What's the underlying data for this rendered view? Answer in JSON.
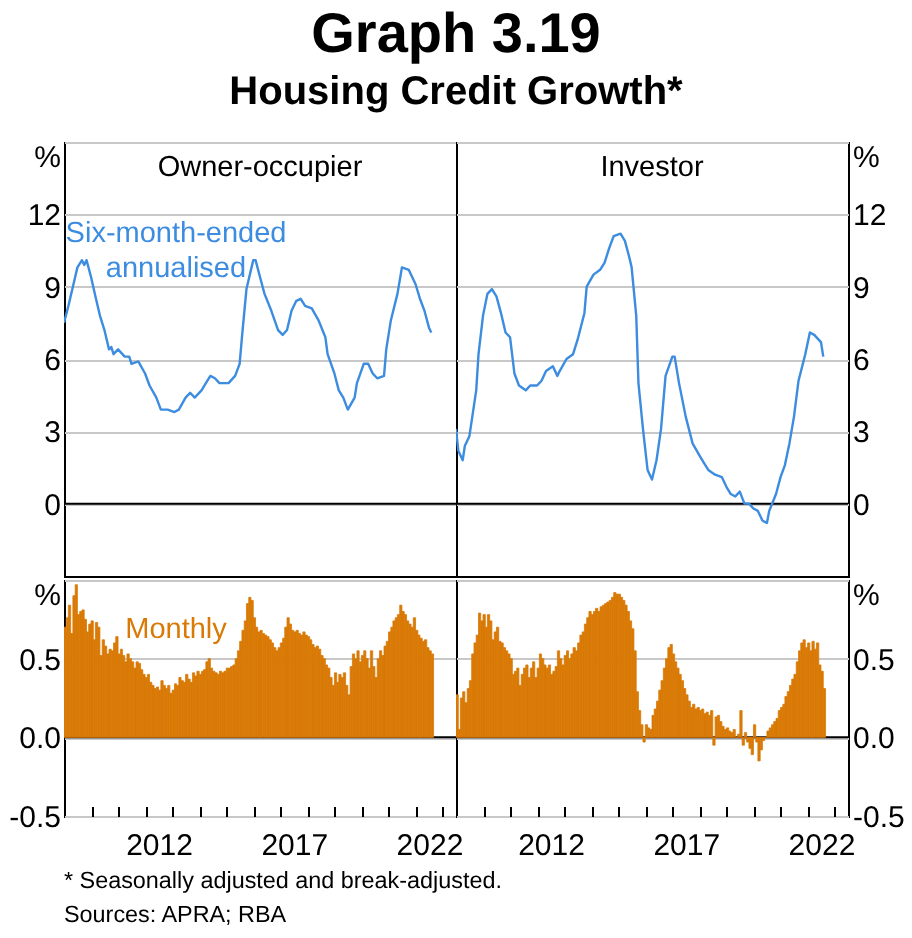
{
  "chart_data": [
    {
      "type": "line",
      "title": "Graph 3.19",
      "subtitle": "Housing Credit Growth*",
      "annotations": [
        "Owner-occupier"
      ],
      "xlim": [
        "2009-01",
        "2023-07"
      ],
      "ylim": [
        -3,
        15
      ],
      "yticks": [
        0,
        3,
        6,
        9,
        12,
        {
          "value": 15,
          "label": "%"
        }
      ],
      "grid": "y",
      "tick_labels": "y",
      "ref_lines": [
        {
          "axis": "y",
          "value": 0,
          "color": "#000000"
        }
      ],
      "series": [
        {
          "name": "Six-month-ended annualised",
          "color": "#3c8ce0",
          "x": [
            "2009-01",
            "2009-03",
            "2009-05",
            "2009-07",
            "2009-09",
            "2009-10",
            "2009-11",
            "2010-01",
            "2010-03",
            "2010-05",
            "2010-07",
            "2010-09",
            "2010-10",
            "2010-11",
            "2011-01",
            "2011-04",
            "2011-06",
            "2011-07",
            "2011-10",
            "2012-01",
            "2012-03",
            "2012-06",
            "2012-08",
            "2012-11",
            "2013-02",
            "2013-04",
            "2013-07",
            "2013-09",
            "2013-11",
            "2014-02",
            "2014-04",
            "2014-06",
            "2014-08",
            "2014-10",
            "2015-02",
            "2015-05",
            "2015-07",
            "2015-08",
            "2015-10",
            "2016-01",
            "2016-02",
            "2016-04",
            "2016-06",
            "2016-09",
            "2016-12",
            "2017-02",
            "2017-04",
            "2017-06",
            "2017-08",
            "2017-10",
            "2017-12",
            "2018-03",
            "2018-06",
            "2018-09",
            "2018-10",
            "2019-01",
            "2019-03",
            "2019-05",
            "2019-07",
            "2019-10",
            "2019-11",
            "2020-02",
            "2020-04",
            "2020-06",
            "2020-08",
            "2020-11",
            "2020-12",
            "2021-02",
            "2021-05",
            "2021-07",
            "2021-10",
            "2022-01",
            "2022-03",
            "2022-05",
            "2022-07",
            "2022-08"
          ],
          "values": [
            7.5,
            8.2,
            9.0,
            9.8,
            10.1,
            9.9,
            10.1,
            9.4,
            8.6,
            7.8,
            7.2,
            6.4,
            6.5,
            6.2,
            6.4,
            6.1,
            6.1,
            5.8,
            5.9,
            5.4,
            4.9,
            4.4,
            3.9,
            3.9,
            3.8,
            3.9,
            4.4,
            4.6,
            4.4,
            4.7,
            5.0,
            5.3,
            5.2,
            5.0,
            5.0,
            5.3,
            5.8,
            6.9,
            8.9,
            10.1,
            10.1,
            9.4,
            8.7,
            8.0,
            7.2,
            7.0,
            7.2,
            8.0,
            8.4,
            8.5,
            8.2,
            8.1,
            7.6,
            6.9,
            6.2,
            5.4,
            4.7,
            4.4,
            3.9,
            4.4,
            5.0,
            5.8,
            5.8,
            5.4,
            5.2,
            5.3,
            6.4,
            7.6,
            8.7,
            9.8,
            9.7,
            9.1,
            8.5,
            8.0,
            7.3,
            7.1
          ]
        }
      ]
    },
    {
      "type": "line",
      "annotations": [
        "Investor"
      ],
      "xlim": [
        "2009-01",
        "2023-07"
      ],
      "ylim": [
        -3,
        15
      ],
      "yticks": [
        0,
        3,
        6,
        9,
        12,
        {
          "value": 15,
          "label": "%"
        }
      ],
      "grid": "y",
      "tick_labels": "y",
      "ref_lines": [
        {
          "axis": "y",
          "value": 0,
          "color": "#000000"
        }
      ],
      "series": [
        {
          "color": "#3c8ce0",
          "x": [
            "2009-01",
            "2009-02",
            "2009-04",
            "2009-05",
            "2009-07",
            "2009-10",
            "2009-11",
            "2010-01",
            "2010-03",
            "2010-05",
            "2010-07",
            "2010-09",
            "2010-11",
            "2011-01",
            "2011-03",
            "2011-05",
            "2011-08",
            "2011-10",
            "2012-01",
            "2012-03",
            "2012-05",
            "2012-08",
            "2012-10",
            "2012-11",
            "2013-02",
            "2013-05",
            "2013-07",
            "2013-10",
            "2013-11",
            "2014-02",
            "2014-05",
            "2014-07",
            "2014-09",
            "2014-11",
            "2015-02",
            "2015-04",
            "2015-06",
            "2015-07",
            "2015-09",
            "2015-10",
            "2015-12",
            "2016-02",
            "2016-04",
            "2016-06",
            "2016-08",
            "2016-10",
            "2017-01",
            "2017-02",
            "2017-04",
            "2017-07",
            "2017-10",
            "2018-01",
            "2018-03",
            "2018-05",
            "2018-08",
            "2018-11",
            "2019-01",
            "2019-03",
            "2019-05",
            "2019-07",
            "2019-09",
            "2019-11",
            "2020-01",
            "2020-03",
            "2020-05",
            "2020-07",
            "2020-08",
            "2020-11",
            "2021-01",
            "2021-03",
            "2021-05",
            "2021-07",
            "2021-09",
            "2021-12",
            "2022-02",
            "2022-04",
            "2022-07",
            "2022-08"
          ],
          "values": [
            3.1,
            2.2,
            1.8,
            2.4,
            2.8,
            4.7,
            6.2,
            7.8,
            8.7,
            8.9,
            8.6,
            7.9,
            7.1,
            6.9,
            5.4,
            4.9,
            4.7,
            4.9,
            4.9,
            5.1,
            5.5,
            5.7,
            5.3,
            5.5,
            6.0,
            6.2,
            6.8,
            7.9,
            9.0,
            9.5,
            9.7,
            10.0,
            10.6,
            11.1,
            11.2,
            10.9,
            10.2,
            9.8,
            7.8,
            5.0,
            3.1,
            1.4,
            1.0,
            1.8,
            3.1,
            5.3,
            6.1,
            6.1,
            5.0,
            3.6,
            2.5,
            2.0,
            1.7,
            1.4,
            1.2,
            1.1,
            0.7,
            0.4,
            0.3,
            0.5,
            0.0,
            0.0,
            -0.2,
            -0.3,
            -0.7,
            -0.8,
            -0.3,
            0.4,
            1.1,
            1.6,
            2.5,
            3.6,
            5.1,
            6.2,
            7.1,
            7.0,
            6.7,
            6.1
          ]
        }
      ]
    },
    {
      "type": "bar",
      "xlim": [
        "2009-01",
        "2023-07"
      ],
      "ylim": [
        -0.5,
        1.0
      ],
      "yticks": [
        -0.5,
        {
          "value": 0,
          "label": "0.0"
        },
        0.5,
        {
          "value": 1.0,
          "label": "%"
        }
      ],
      "grid": "y",
      "xticks": [
        {
          "value": "2010",
          "label": null
        },
        {
          "value": "2011",
          "label": null
        },
        {
          "value": "2012",
          "label": null
        },
        {
          "value": "2013",
          "label": null
        },
        {
          "value": "2014",
          "label": null
        },
        {
          "value": "2015",
          "label": null
        },
        {
          "value": "2016",
          "label": null
        },
        {
          "value": "2017",
          "label": null
        },
        {
          "value": "2018",
          "label": null
        },
        {
          "value": "2019",
          "label": null
        },
        {
          "value": "2020",
          "label": null
        },
        {
          "value": "2021",
          "label": null
        },
        {
          "value": "2022",
          "label": null
        },
        {
          "value": "2023",
          "label": null
        },
        {
          "value": "2012-07",
          "label": "2012"
        },
        {
          "value": "2017-07",
          "label": "2017"
        },
        {
          "value": "2022-07",
          "label": "2022"
        }
      ],
      "ref_lines": [
        {
          "axis": "y",
          "value": 0,
          "color": "#000000"
        }
      ],
      "x": [
        "2009-01",
        "2009-02",
        "2009-03",
        "2009-04",
        "2009-05",
        "2009-06",
        "2009-07",
        "2009-08",
        "2009-09",
        "2009-10",
        "2009-11",
        "2009-12",
        "2010-01",
        "2010-02",
        "2010-03",
        "2010-04",
        "2010-05",
        "2010-06",
        "2010-07",
        "2010-08",
        "2010-09",
        "2010-10",
        "2010-11",
        "2010-12",
        "2011-01",
        "2011-02",
        "2011-03",
        "2011-04",
        "2011-05",
        "2011-06",
        "2011-07",
        "2011-08",
        "2011-09",
        "2011-10",
        "2011-11",
        "2011-12",
        "2012-01",
        "2012-02",
        "2012-03",
        "2012-04",
        "2012-05",
        "2012-06",
        "2012-07",
        "2012-08",
        "2012-09",
        "2012-10",
        "2012-11",
        "2012-12",
        "2013-01",
        "2013-02",
        "2013-03",
        "2013-04",
        "2013-05",
        "2013-06",
        "2013-07",
        "2013-08",
        "2013-09",
        "2013-10",
        "2013-11",
        "2013-12",
        "2014-01",
        "2014-02",
        "2014-03",
        "2014-04",
        "2014-05",
        "2014-06",
        "2014-07",
        "2014-08",
        "2014-09",
        "2014-10",
        "2014-11",
        "2014-12",
        "2015-01",
        "2015-02",
        "2015-03",
        "2015-04",
        "2015-05",
        "2015-06",
        "2015-07",
        "2015-08",
        "2015-09",
        "2015-10",
        "2015-11",
        "2015-12",
        "2016-01",
        "2016-02",
        "2016-03",
        "2016-04",
        "2016-05",
        "2016-06",
        "2016-07",
        "2016-08",
        "2016-09",
        "2016-10",
        "2016-11",
        "2016-12",
        "2017-01",
        "2017-02",
        "2017-03",
        "2017-04",
        "2017-05",
        "2017-06",
        "2017-07",
        "2017-08",
        "2017-09",
        "2017-10",
        "2017-11",
        "2017-12",
        "2018-01",
        "2018-02",
        "2018-03",
        "2018-04",
        "2018-05",
        "2018-06",
        "2018-07",
        "2018-08",
        "2018-09",
        "2018-10",
        "2018-11",
        "2018-12",
        "2019-01",
        "2019-02",
        "2019-03",
        "2019-04",
        "2019-05",
        "2019-06",
        "2019-07",
        "2019-08",
        "2019-09",
        "2019-10",
        "2019-11",
        "2019-12",
        "2020-01",
        "2020-02",
        "2020-03",
        "2020-04",
        "2020-05",
        "2020-06",
        "2020-07",
        "2020-08",
        "2020-09",
        "2020-10",
        "2020-11",
        "2020-12",
        "2021-01",
        "2021-02",
        "2021-03",
        "2021-04",
        "2021-05",
        "2021-06",
        "2021-07",
        "2021-08",
        "2021-09",
        "2021-10",
        "2021-11",
        "2021-12",
        "2022-01",
        "2022-02",
        "2022-03",
        "2022-04",
        "2022-05",
        "2022-06",
        "2022-07",
        "2022-08"
      ],
      "series": [
        {
          "name": "Monthly",
          "color": "#d97a06",
          "values": [
            0.7,
            0.76,
            0.84,
            0.66,
            0.9,
            0.97,
            0.78,
            0.8,
            0.81,
            0.75,
            0.67,
            0.72,
            0.74,
            0.62,
            0.73,
            0.7,
            0.52,
            0.62,
            0.58,
            0.53,
            0.56,
            0.55,
            0.6,
            0.64,
            0.53,
            0.56,
            0.52,
            0.48,
            0.53,
            0.5,
            0.48,
            0.44,
            0.48,
            0.47,
            0.43,
            0.4,
            0.38,
            0.4,
            0.35,
            0.33,
            0.31,
            0.32,
            0.3,
            0.36,
            0.33,
            0.31,
            0.33,
            0.28,
            0.3,
            0.34,
            0.33,
            0.38,
            0.36,
            0.35,
            0.4,
            0.37,
            0.35,
            0.41,
            0.39,
            0.42,
            0.4,
            0.42,
            0.43,
            0.48,
            0.5,
            0.44,
            0.42,
            0.41,
            0.4,
            0.42,
            0.41,
            0.42,
            0.44,
            0.44,
            0.45,
            0.46,
            0.5,
            0.55,
            0.61,
            0.68,
            0.74,
            0.85,
            0.89,
            0.87,
            0.76,
            0.7,
            0.67,
            0.68,
            0.66,
            0.65,
            0.64,
            0.62,
            0.6,
            0.57,
            0.55,
            0.57,
            0.6,
            0.63,
            0.7,
            0.76,
            0.72,
            0.68,
            0.67,
            0.68,
            0.66,
            0.65,
            0.67,
            0.65,
            0.64,
            0.62,
            0.59,
            0.57,
            0.58,
            0.56,
            0.52,
            0.5,
            0.46,
            0.44,
            0.38,
            0.33,
            0.41,
            0.35,
            0.4,
            0.38,
            0.41,
            0.33,
            0.27,
            0.45,
            0.53,
            0.5,
            0.55,
            0.48,
            0.52,
            0.55,
            0.5,
            0.44,
            0.55,
            0.45,
            0.38,
            0.5,
            0.55,
            0.52,
            0.58,
            0.61,
            0.67,
            0.7,
            0.74,
            0.76,
            0.78,
            0.84,
            0.8,
            0.78,
            0.74,
            0.72,
            0.7,
            0.76,
            0.68,
            0.65,
            0.63,
            0.61,
            0.62,
            0.57,
            0.55,
            0.53
          ]
        }
      ]
    },
    {
      "type": "bar",
      "annotations": [
        "* Seasonally adjusted and break-adjusted.",
        "Sources: APRA; RBA"
      ],
      "xlim": [
        "2009-01",
        "2023-07"
      ],
      "ylim": [
        -0.5,
        1.0
      ],
      "yticks": [
        -0.5,
        {
          "value": 0,
          "label": "0.0"
        },
        0.5,
        {
          "value": 1.0,
          "label": "%"
        }
      ],
      "grid": "y",
      "xticks": [
        {
          "value": "2010",
          "label": null
        },
        {
          "value": "2011",
          "label": null
        },
        {
          "value": "2012",
          "label": null
        },
        {
          "value": "2013",
          "label": null
        },
        {
          "value": "2014",
          "label": null
        },
        {
          "value": "2015",
          "label": null
        },
        {
          "value": "2016",
          "label": null
        },
        {
          "value": "2017",
          "label": null
        },
        {
          "value": "2018",
          "label": null
        },
        {
          "value": "2019",
          "label": null
        },
        {
          "value": "2020",
          "label": null
        },
        {
          "value": "2021",
          "label": null
        },
        {
          "value": "2022",
          "label": null
        },
        {
          "value": "2023",
          "label": null
        },
        {
          "value": "2012-07",
          "label": "2012"
        },
        {
          "value": "2017-07",
          "label": "2017"
        },
        {
          "value": "2022-07",
          "label": "2022"
        }
      ],
      "ref_lines": [
        {
          "axis": "y",
          "value": 0,
          "color": "#000000"
        }
      ],
      "x": [
        "2009-01",
        "2009-02",
        "2009-03",
        "2009-04",
        "2009-05",
        "2009-06",
        "2009-07",
        "2009-08",
        "2009-09",
        "2009-10",
        "2009-11",
        "2009-12",
        "2010-01",
        "2010-02",
        "2010-03",
        "2010-04",
        "2010-05",
        "2010-06",
        "2010-07",
        "2010-08",
        "2010-09",
        "2010-10",
        "2010-11",
        "2010-12",
        "2011-01",
        "2011-02",
        "2011-03",
        "2011-04",
        "2011-05",
        "2011-06",
        "2011-07",
        "2011-08",
        "2011-09",
        "2011-10",
        "2011-11",
        "2011-12",
        "2012-01",
        "2012-02",
        "2012-03",
        "2012-04",
        "2012-05",
        "2012-06",
        "2012-07",
        "2012-08",
        "2012-09",
        "2012-10",
        "2012-11",
        "2012-12",
        "2013-01",
        "2013-02",
        "2013-03",
        "2013-04",
        "2013-05",
        "2013-06",
        "2013-07",
        "2013-08",
        "2013-09",
        "2013-10",
        "2013-11",
        "2013-12",
        "2014-01",
        "2014-02",
        "2014-03",
        "2014-04",
        "2014-05",
        "2014-06",
        "2014-07",
        "2014-08",
        "2014-09",
        "2014-10",
        "2014-11",
        "2014-12",
        "2015-01",
        "2015-02",
        "2015-03",
        "2015-04",
        "2015-05",
        "2015-06",
        "2015-07",
        "2015-08",
        "2015-09",
        "2015-10",
        "2015-11",
        "2015-12",
        "2016-01",
        "2016-02",
        "2016-03",
        "2016-04",
        "2016-05",
        "2016-06",
        "2016-07",
        "2016-08",
        "2016-09",
        "2016-10",
        "2016-11",
        "2016-12",
        "2017-01",
        "2017-02",
        "2017-03",
        "2017-04",
        "2017-05",
        "2017-06",
        "2017-07",
        "2017-08",
        "2017-09",
        "2017-10",
        "2017-11",
        "2017-12",
        "2018-01",
        "2018-02",
        "2018-03",
        "2018-04",
        "2018-05",
        "2018-06",
        "2018-07",
        "2018-08",
        "2018-09",
        "2018-10",
        "2018-11",
        "2018-12",
        "2019-01",
        "2019-02",
        "2019-03",
        "2019-04",
        "2019-05",
        "2019-06",
        "2019-07",
        "2019-08",
        "2019-09",
        "2019-10",
        "2019-11",
        "2019-12",
        "2020-01",
        "2020-02",
        "2020-03",
        "2020-04",
        "2020-05",
        "2020-06",
        "2020-07",
        "2020-08",
        "2020-09",
        "2020-10",
        "2020-11",
        "2020-12",
        "2021-01",
        "2021-02",
        "2021-03",
        "2021-04",
        "2021-05",
        "2021-06",
        "2021-07",
        "2021-08",
        "2021-09",
        "2021-10",
        "2021-11",
        "2021-12",
        "2022-01",
        "2022-02",
        "2022-03",
        "2022-04",
        "2022-05",
        "2022-06",
        "2022-07",
        "2022-08"
      ],
      "series": [
        {
          "color": "#d97a06",
          "values": [
            0.27,
            0.05,
            0.25,
            0.29,
            0.22,
            0.31,
            0.36,
            0.53,
            0.6,
            0.65,
            0.79,
            0.74,
            0.78,
            0.7,
            0.78,
            0.74,
            0.62,
            0.67,
            0.7,
            0.61,
            0.6,
            0.57,
            0.55,
            0.53,
            0.5,
            0.4,
            0.42,
            0.44,
            0.33,
            0.4,
            0.44,
            0.46,
            0.38,
            0.44,
            0.48,
            0.38,
            0.44,
            0.53,
            0.5,
            0.46,
            0.44,
            0.46,
            0.4,
            0.42,
            0.45,
            0.55,
            0.5,
            0.46,
            0.52,
            0.55,
            0.5,
            0.53,
            0.57,
            0.55,
            0.6,
            0.65,
            0.67,
            0.72,
            0.76,
            0.8,
            0.78,
            0.8,
            0.82,
            0.8,
            0.83,
            0.84,
            0.85,
            0.86,
            0.87,
            0.89,
            0.92,
            0.91,
            0.91,
            0.89,
            0.87,
            0.84,
            0.8,
            0.74,
            0.69,
            0.55,
            0.29,
            0.17,
            0.08,
            -0.03,
            0.08,
            0.06,
            0.05,
            0.14,
            0.18,
            0.23,
            0.3,
            0.36,
            0.44,
            0.5,
            0.57,
            0.59,
            0.53,
            0.48,
            0.44,
            0.4,
            0.36,
            0.31,
            0.27,
            0.23,
            0.19,
            0.21,
            0.18,
            0.19,
            0.17,
            0.18,
            0.15,
            0.16,
            0.14,
            0.17,
            -0.05,
            0.13,
            0.14,
            0.1,
            0.07,
            0.05,
            0.06,
            0.04,
            0.03,
            0.05,
            0.0,
            0.02,
            0.17,
            -0.05,
            0.03,
            -0.03,
            -0.07,
            -0.11,
            0.08,
            -0.03,
            -0.15,
            -0.08,
            -0.02,
            0.0,
            0.04,
            0.06,
            0.08,
            0.1,
            0.12,
            0.17,
            0.19,
            0.21,
            0.26,
            0.29,
            0.33,
            0.37,
            0.4,
            0.48,
            0.55,
            0.6,
            0.62,
            0.57,
            0.6,
            0.55,
            0.61,
            0.56,
            0.6,
            0.46,
            0.42,
            0.31
          ]
        }
      ]
    }
  ]
}
